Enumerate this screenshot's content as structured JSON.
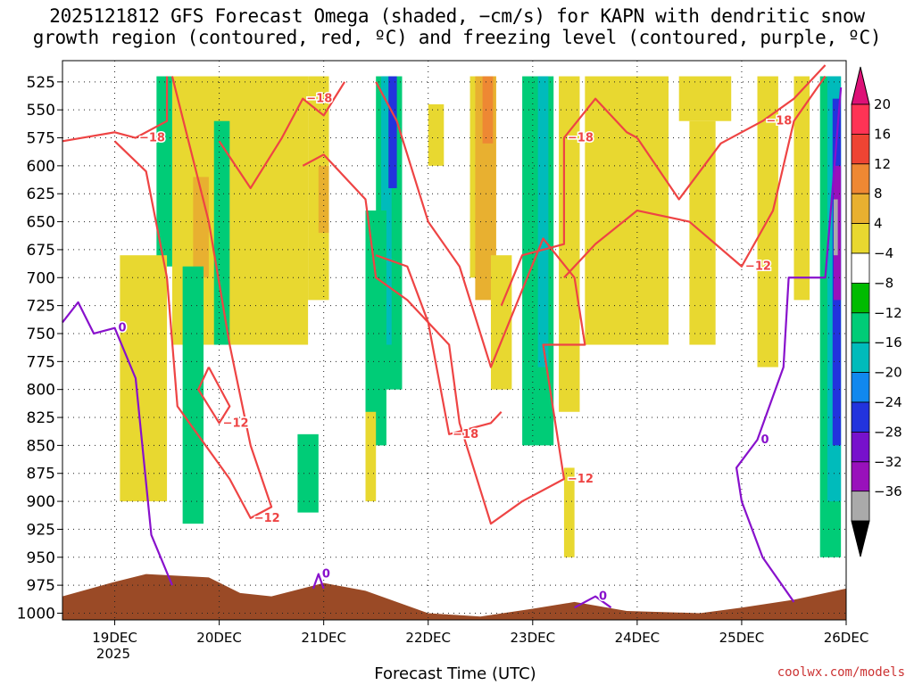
{
  "title_line1": "2025121812 GFS Forecast Omega (shaded, −cm/s) for KAPN with dendritic snow",
  "title_line2": "growth region (contoured, red, ºC) and freezing level (contoured, purple, ºC)",
  "xlabel": "Forecast Time (UTC)",
  "credit": "coolwx.com/models",
  "year_label": "2025",
  "chart_data": {
    "type": "heatmap",
    "title": "2025121812 GFS Forecast Omega (shaded, −cm/s) for KAPN with dendritic snow growth region (contoured, red, ºC) and freezing level (contoured, purple, ºC)",
    "xlabel": "Forecast Time (UTC)",
    "ylabel": "",
    "x_ticks": [
      "19DEC",
      "20DEC",
      "21DEC",
      "22DEC",
      "23DEC",
      "24DEC",
      "25DEC",
      "26DEC"
    ],
    "x_hours_range": [
      -0.5,
      7.0
    ],
    "y_ticks": [
      525,
      550,
      575,
      600,
      625,
      650,
      675,
      700,
      725,
      750,
      775,
      800,
      825,
      850,
      875,
      900,
      925,
      950,
      975,
      1000
    ],
    "y_range_hpa": [
      506,
      1006
    ],
    "grid": true,
    "colorbar": {
      "labels": [
        "20",
        "16",
        "12",
        "8",
        "4",
        "−4",
        "−8",
        "−12",
        "−16",
        "−20",
        "−24",
        "−28",
        "−32",
        "−36"
      ],
      "colors": [
        "#ff3355",
        "#ee4433",
        "#ee8833",
        "#e8b030",
        "#e8d830",
        "#ffffff",
        "#00bb00",
        "#00cc77",
        "#00bbbb",
        "#1188ee",
        "#2233dd",
        "#7711cc",
        "#9911bb",
        "#aaaaaa"
      ]
    },
    "omega_regions": [
      {
        "x": [
          0.55,
          1.85
        ],
        "p": [
          520,
          760
        ],
        "v": 5
      },
      {
        "x": [
          0.75,
          0.9
        ],
        "p": [
          610,
          700
        ],
        "v": 9
      },
      {
        "x": [
          0.4,
          0.55
        ],
        "p": [
          520,
          690
        ],
        "v": -8
      },
      {
        "x": [
          0.2,
          0.28
        ],
        "p": [
          690,
          800
        ],
        "v": -14
      },
      {
        "x": [
          0.05,
          0.5
        ],
        "p": [
          680,
          900
        ],
        "v": 5
      },
      {
        "x": [
          0.65,
          0.85
        ],
        "p": [
          690,
          920
        ],
        "v": -8
      },
      {
        "x": [
          0.95,
          1.1
        ],
        "p": [
          560,
          760
        ],
        "v": -8
      },
      {
        "x": [
          1.85,
          2.05
        ],
        "p": [
          520,
          720
        ],
        "v": 5
      },
      {
        "x": [
          1.95,
          2.05
        ],
        "p": [
          600,
          660
        ],
        "v": 9
      },
      {
        "x": [
          1.75,
          1.95
        ],
        "p": [
          840,
          910
        ],
        "v": -8
      },
      {
        "x": [
          2.5,
          2.75
        ],
        "p": [
          520,
          800
        ],
        "v": -8
      },
      {
        "x": [
          2.55,
          2.65
        ],
        "p": [
          520,
          760
        ],
        "v": -14
      },
      {
        "x": [
          2.62,
          2.7
        ],
        "p": [
          520,
          620
        ],
        "v": -20
      },
      {
        "x": [
          2.4,
          2.6
        ],
        "p": [
          640,
          850
        ],
        "v": -8
      },
      {
        "x": [
          3.0,
          3.15
        ],
        "p": [
          545,
          600
        ],
        "v": 5
      },
      {
        "x": [
          3.4,
          3.65
        ],
        "p": [
          520,
          700
        ],
        "v": 5
      },
      {
        "x": [
          3.45,
          3.65
        ],
        "p": [
          520,
          720
        ],
        "v": 9
      },
      {
        "x": [
          3.52,
          3.62
        ],
        "p": [
          520,
          580
        ],
        "v": 13
      },
      {
        "x": [
          3.6,
          3.8
        ],
        "p": [
          680,
          800
        ],
        "v": 5
      },
      {
        "x": [
          3.9,
          4.2
        ],
        "p": [
          520,
          850
        ],
        "v": -8
      },
      {
        "x": [
          4.05,
          4.15
        ],
        "p": [
          520,
          780
        ],
        "v": -14
      },
      {
        "x": [
          4.25,
          4.45
        ],
        "p": [
          520,
          820
        ],
        "v": 5
      },
      {
        "x": [
          4.5,
          5.3
        ],
        "p": [
          520,
          760
        ],
        "v": 5
      },
      {
        "x": [
          5.4,
          5.9
        ],
        "p": [
          520,
          560
        ],
        "v": 5
      },
      {
        "x": [
          5.5,
          5.75
        ],
        "p": [
          560,
          760
        ],
        "v": 5
      },
      {
        "x": [
          6.15,
          6.35
        ],
        "p": [
          520,
          780
        ],
        "v": 5
      },
      {
        "x": [
          6.5,
          6.65
        ],
        "p": [
          520,
          720
        ],
        "v": 5
      },
      {
        "x": [
          6.75,
          6.95
        ],
        "p": [
          520,
          950
        ],
        "v": -8
      },
      {
        "x": [
          6.82,
          6.95
        ],
        "p": [
          520,
          900
        ],
        "v": -14
      },
      {
        "x": [
          6.87,
          6.95
        ],
        "p": [
          540,
          850
        ],
        "v": -20
      },
      {
        "x": [
          6.88,
          6.95
        ],
        "p": [
          600,
          720
        ],
        "v": -28
      },
      {
        "x": [
          6.88,
          6.92
        ],
        "p": [
          630,
          680
        ],
        "v": -34
      },
      {
        "x": [
          2.4,
          2.5
        ],
        "p": [
          820,
          900
        ],
        "v": 5
      },
      {
        "x": [
          4.3,
          4.4
        ],
        "p": [
          870,
          950
        ],
        "v": 5
      }
    ],
    "dgz_contours": [
      {
        "label": "−18",
        "points": [
          [
            -0.5,
            578
          ],
          [
            0.0,
            570
          ],
          [
            0.2,
            575
          ],
          [
            0.5,
            560
          ],
          [
            0.5,
            520
          ]
        ]
      },
      {
        "label": "−12",
        "points": [
          [
            0.0,
            578
          ],
          [
            0.3,
            605
          ],
          [
            0.5,
            700
          ],
          [
            0.6,
            815
          ],
          [
            1.1,
            880
          ],
          [
            1.3,
            915
          ],
          [
            1.5,
            905
          ],
          [
            1.3,
            850
          ],
          [
            1.1,
            760
          ],
          [
            0.9,
            650
          ],
          [
            0.55,
            520
          ]
        ]
      },
      {
        "label": "−12",
        "points": [
          [
            0.9,
            780
          ],
          [
            1.1,
            815
          ],
          [
            1.0,
            830
          ],
          [
            0.8,
            800
          ],
          [
            0.9,
            780
          ]
        ]
      },
      {
        "label": "−18",
        "points": [
          [
            1.0,
            578
          ],
          [
            1.3,
            620
          ],
          [
            1.6,
            575
          ],
          [
            1.8,
            540
          ],
          [
            2.0,
            555
          ],
          [
            2.2,
            525
          ]
        ]
      },
      {
        "label": "−12",
        "points": [
          [
            1.8,
            600
          ],
          [
            2.0,
            590
          ],
          [
            2.4,
            630
          ],
          [
            2.5,
            700
          ],
          [
            2.8,
            720
          ],
          [
            3.2,
            760
          ],
          [
            3.3,
            830
          ],
          [
            3.6,
            920
          ],
          [
            3.9,
            900
          ],
          [
            4.3,
            880
          ],
          [
            4.1,
            760
          ],
          [
            4.5,
            760
          ],
          [
            4.4,
            700
          ],
          [
            4.1,
            665
          ],
          [
            3.6,
            780
          ],
          [
            3.3,
            690
          ],
          [
            3.0,
            650
          ],
          [
            2.7,
            560
          ],
          [
            2.5,
            525
          ]
        ]
      },
      {
        "label": "−18",
        "points": [
          [
            2.5,
            680
          ],
          [
            2.8,
            690
          ],
          [
            3.0,
            740
          ],
          [
            3.2,
            840
          ],
          [
            3.6,
            830
          ],
          [
            3.7,
            820
          ]
        ]
      },
      {
        "label": "−18",
        "points": [
          [
            3.7,
            725
          ],
          [
            3.9,
            680
          ],
          [
            4.3,
            670
          ],
          [
            4.3,
            575
          ],
          [
            4.6,
            540
          ],
          [
            4.9,
            570
          ],
          [
            5.0,
            575
          ]
        ]
      },
      {
        "label": "−12",
        "points": [
          [
            4.3,
            700
          ],
          [
            4.6,
            670
          ],
          [
            5.0,
            640
          ],
          [
            5.5,
            650
          ],
          [
            6.0,
            690
          ],
          [
            6.3,
            640
          ],
          [
            6.5,
            560
          ],
          [
            6.8,
            520
          ]
        ]
      },
      {
        "label": "−18",
        "points": [
          [
            5.0,
            575
          ],
          [
            5.4,
            630
          ],
          [
            5.8,
            580
          ],
          [
            6.2,
            560
          ],
          [
            6.5,
            540
          ],
          [
            6.8,
            510
          ]
        ]
      }
    ],
    "freezing_level_contours": [
      {
        "label": "0",
        "points": [
          [
            -0.5,
            740
          ],
          [
            -0.35,
            722
          ],
          [
            -0.2,
            750
          ],
          [
            0.0,
            745
          ],
          [
            0.2,
            790
          ],
          [
            0.35,
            930
          ],
          [
            0.55,
            975
          ]
        ]
      },
      {
        "label": "0",
        "points": [
          [
            6.5,
            990
          ],
          [
            6.2,
            950
          ],
          [
            6.0,
            900
          ],
          [
            5.95,
            870
          ],
          [
            6.15,
            845
          ],
          [
            6.4,
            780
          ],
          [
            6.45,
            700
          ],
          [
            6.8,
            700
          ],
          [
            6.95,
            530
          ]
        ]
      },
      {
        "label": "0",
        "points": [
          [
            4.4,
            995
          ],
          [
            4.6,
            985
          ],
          [
            4.75,
            995
          ]
        ]
      },
      {
        "label": "0",
        "points": [
          [
            1.9,
            978
          ],
          [
            1.95,
            965
          ],
          [
            2.0,
            978
          ]
        ]
      }
    ],
    "terrain": [
      {
        "x": -0.5,
        "p": 985
      },
      {
        "x": 0.0,
        "p": 972
      },
      {
        "x": 0.3,
        "p": 965
      },
      {
        "x": 0.9,
        "p": 968
      },
      {
        "x": 1.2,
        "p": 982
      },
      {
        "x": 1.5,
        "p": 985
      },
      {
        "x": 2.0,
        "p": 973
      },
      {
        "x": 2.4,
        "p": 980
      },
      {
        "x": 3.0,
        "p": 1000
      },
      {
        "x": 3.5,
        "p": 1003
      },
      {
        "x": 4.0,
        "p": 996
      },
      {
        "x": 4.4,
        "p": 990
      },
      {
        "x": 4.9,
        "p": 998
      },
      {
        "x": 5.6,
        "p": 1000
      },
      {
        "x": 6.0,
        "p": 995
      },
      {
        "x": 6.5,
        "p": 988
      },
      {
        "x": 7.0,
        "p": 978
      }
    ]
  }
}
